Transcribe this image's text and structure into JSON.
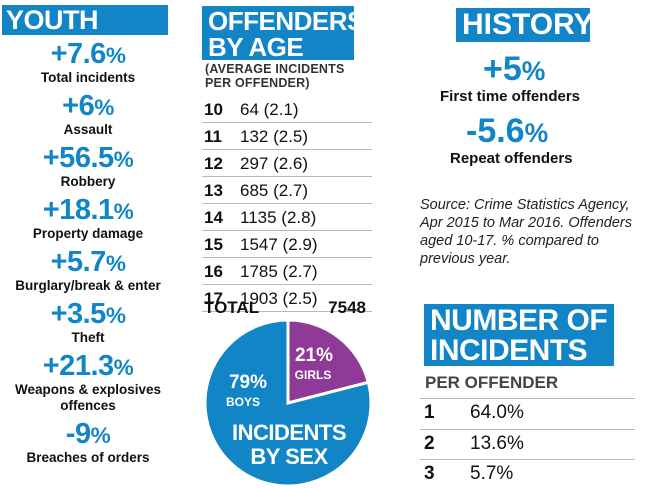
{
  "youth_crime": {
    "title": "YOUTH CRIME",
    "stats": [
      {
        "value": "+7.6",
        "unit": "%",
        "label": "Total incidents"
      },
      {
        "value": "+6",
        "unit": "%",
        "label": "Assault"
      },
      {
        "value": "+56.5",
        "unit": "%",
        "label": "Robbery"
      },
      {
        "value": "+18.1",
        "unit": "%",
        "label": "Property damage"
      },
      {
        "value": "+5.7",
        "unit": "%",
        "label": "Burglary/break & enter"
      },
      {
        "value": "+3.5",
        "unit": "%",
        "label": "Theft"
      },
      {
        "value": "+21.3",
        "unit": "%",
        "label": "Weapons & explosives offences"
      },
      {
        "value": "-9",
        "unit": "%",
        "label": "Breaches of orders"
      }
    ]
  },
  "offenders_by_age": {
    "title_line1": "OFFENDERS",
    "title_line2": "BY AGE",
    "subtitle_line1": "(AVERAGE INCIDENTS",
    "subtitle_line2": "PER OFFENDER)",
    "rows": [
      {
        "age": "10",
        "value": "64 (2.1)"
      },
      {
        "age": "11",
        "value": "132 (2.5)"
      },
      {
        "age": "12",
        "value": "297 (2.6)"
      },
      {
        "age": "13",
        "value": "685 (2.7)"
      },
      {
        "age": "14",
        "value": "1135 (2.8)"
      },
      {
        "age": "15",
        "value": "1547 (2.9)"
      },
      {
        "age": "16",
        "value": "1785 (2.7)"
      },
      {
        "age": "17",
        "value": "1903 (2.5)"
      }
    ],
    "total_label": "TOTAL",
    "total_value": "7548"
  },
  "chart_data": {
    "type": "pie",
    "title_line1": "INCIDENTS",
    "title_line2": "BY SEX",
    "slices": [
      {
        "label": "BOYS",
        "value": 79,
        "value_text": "79%",
        "color": "#1185c6"
      },
      {
        "label": "GIRLS",
        "value": 21,
        "value_text": "21%",
        "color": "#8e3a96"
      }
    ]
  },
  "history": {
    "title": "HISTORY",
    "items": [
      {
        "value": "+5",
        "unit": "%",
        "label": "First time offenders"
      },
      {
        "value": "-5.6",
        "unit": "%",
        "label": "Repeat offenders"
      }
    ],
    "source": "Source: Crime Statistics Agency, Apr 2015 to Mar 2016. Offenders aged 10-17. % compared to  previous year."
  },
  "number_of_incidents": {
    "title_line1": "NUMBER OF",
    "title_line2": "INCIDENTS",
    "subtitle": "PER OFFENDER",
    "rows": [
      {
        "rank": "1",
        "value": "64.0%"
      },
      {
        "rank": "2",
        "value": "13.6%"
      },
      {
        "rank": "3",
        "value": "5.7%"
      }
    ]
  },
  "colors": {
    "accent": "#1185c6",
    "girls": "#8e3a96"
  }
}
